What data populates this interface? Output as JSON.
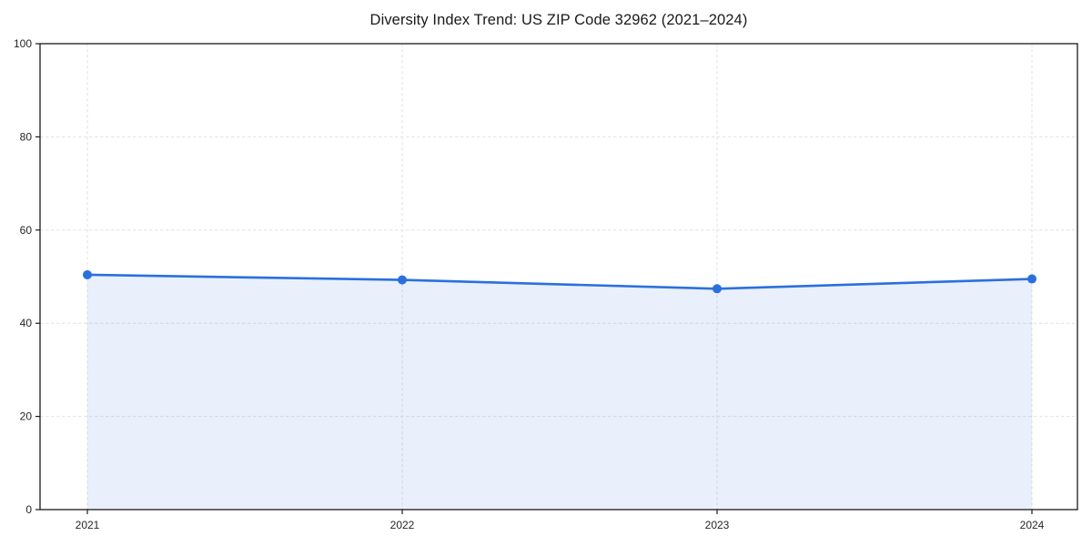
{
  "chart_data": {
    "type": "area",
    "title": "Diversity Index Trend: US ZIP Code 32962 (2021–2024)",
    "categories": [
      "2021",
      "2022",
      "2023",
      "2024"
    ],
    "values": [
      50.4,
      49.3,
      47.4,
      49.5
    ],
    "xlabel": "",
    "ylabel": "",
    "ylim": [
      0,
      100
    ],
    "yticks": [
      0,
      20,
      40,
      60,
      80,
      100
    ],
    "grid": true,
    "grid_style": "dashed",
    "legend_position": "none",
    "line_color": "#2a70dd",
    "marker": "circle",
    "fill_opacity": 0.1,
    "grid_color": "#e2e2e2",
    "spine_color": "#1a1a1a",
    "tick_color": "#262626",
    "background_color": "#ffffff"
  }
}
